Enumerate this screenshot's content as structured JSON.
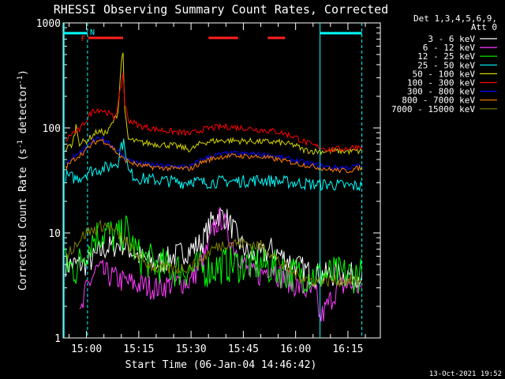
{
  "chart_data": {
    "type": "line",
    "title": "RHESSI Observing Summary Count Rates, Corrected",
    "xlabel": "Start Time (06-Jan-04 14:46:42)",
    "ylabel_main": "Corrected Count Rate (s",
    "ylabel_sup1": "-1",
    "ylabel_mid": " detector",
    "ylabel_sup2": "-1",
    "ylabel_end": ")",
    "yscale": "log",
    "ylim": [
      1,
      1000
    ],
    "xlim_minutes": [
      -6.7,
      84.3
    ],
    "x_ticks": [
      {
        "label": "15:00",
        "minutes": 0
      },
      {
        "label": "15:15",
        "minutes": 15
      },
      {
        "label": "15:30",
        "minutes": 30
      },
      {
        "label": "15:45",
        "minutes": 45
      },
      {
        "label": "16:00",
        "minutes": 60
      },
      {
        "label": "16:15",
        "minutes": 75
      }
    ],
    "y_ticks": [
      {
        "label": "1000",
        "value": 1000
      },
      {
        "label": "100",
        "value": 100
      },
      {
        "label": "10",
        "value": 10
      },
      {
        "label": "1",
        "value": 1
      }
    ],
    "legend_header": [
      "Det 1,3,4,5,6,9,",
      "Att 0"
    ],
    "legend_placement": "top-right outside",
    "flags": [
      {
        "label": "F",
        "color": "#ff2020"
      },
      {
        "label": "N",
        "color": "#00ffff"
      }
    ],
    "flare_bars_minutes": [
      [
        0.5,
        10.5
      ],
      [
        35,
        43.5
      ],
      [
        52,
        57
      ]
    ],
    "night_bars_minutes": [
      [
        -6.7,
        0.3
      ],
      [
        67,
        79
      ]
    ],
    "night_lines_minutes": [
      0.3,
      67,
      79
    ],
    "series": [
      {
        "name": "3 - 6 keV",
        "color": "#ffffff",
        "points": [
          [
            -6,
            5
          ],
          [
            -2,
            5
          ],
          [
            0,
            5
          ],
          [
            5,
            7
          ],
          [
            10,
            8
          ],
          [
            15,
            6
          ],
          [
            20,
            5
          ],
          [
            25,
            6
          ],
          [
            30,
            7
          ],
          [
            33,
            8
          ],
          [
            36,
            13
          ],
          [
            38,
            15
          ],
          [
            40,
            14
          ],
          [
            42,
            11
          ],
          [
            44,
            8
          ],
          [
            47,
            6
          ],
          [
            50,
            6
          ],
          [
            53,
            7
          ],
          [
            56,
            6
          ],
          [
            60,
            5
          ],
          [
            65,
            4
          ],
          [
            70,
            4
          ],
          [
            75,
            4
          ],
          [
            79,
            4
          ]
        ]
      },
      {
        "name": "6 - 12 keV",
        "color": "#ff3cff",
        "points": [
          [
            -2,
            1.5
          ],
          [
            -1,
            2
          ],
          [
            0,
            3
          ],
          [
            3,
            4.5
          ],
          [
            6,
            4
          ],
          [
            10,
            3.5
          ],
          [
            15,
            3.2
          ],
          [
            20,
            3
          ],
          [
            25,
            3.3
          ],
          [
            30,
            3.5
          ],
          [
            34,
            6
          ],
          [
            37,
            12
          ],
          [
            39,
            14
          ],
          [
            41,
            9
          ],
          [
            44,
            6
          ],
          [
            47,
            4
          ],
          [
            50,
            4
          ],
          [
            53,
            5
          ],
          [
            55,
            4
          ],
          [
            60,
            3.2
          ],
          [
            66,
            2.5
          ],
          [
            67,
            1.5
          ],
          [
            69,
            2
          ],
          [
            72,
            3
          ],
          [
            75,
            3.2
          ],
          [
            79,
            3
          ]
        ]
      },
      {
        "name": "12 - 25 keV",
        "color": "#00ff00",
        "points": [
          [
            -6,
            5
          ],
          [
            -3,
            4.5
          ],
          [
            0,
            7
          ],
          [
            2,
            9
          ],
          [
            4,
            10
          ],
          [
            6,
            10
          ],
          [
            8,
            9
          ],
          [
            10,
            9
          ],
          [
            11,
            12
          ],
          [
            12,
            9
          ],
          [
            15,
            6
          ],
          [
            20,
            5
          ],
          [
            25,
            4.5
          ],
          [
            30,
            4.5
          ],
          [
            35,
            4.5
          ],
          [
            40,
            5
          ],
          [
            45,
            5
          ],
          [
            50,
            5
          ],
          [
            55,
            4.5
          ],
          [
            60,
            4
          ],
          [
            65,
            4
          ],
          [
            70,
            4
          ],
          [
            75,
            4
          ],
          [
            79,
            4
          ]
        ]
      },
      {
        "name": "25 - 50 keV",
        "color": "#00ffff",
        "points": [
          [
            -6,
            35
          ],
          [
            -3,
            33
          ],
          [
            -1,
            35
          ],
          [
            0,
            38
          ],
          [
            3,
            40
          ],
          [
            6,
            42
          ],
          [
            9,
            48
          ],
          [
            10,
            70
          ],
          [
            11,
            70
          ],
          [
            12,
            38
          ],
          [
            15,
            33
          ],
          [
            20,
            32
          ],
          [
            25,
            31
          ],
          [
            28,
            30
          ],
          [
            30,
            32
          ],
          [
            33,
            30
          ],
          [
            40,
            31
          ],
          [
            45,
            31
          ],
          [
            50,
            32
          ],
          [
            55,
            31
          ],
          [
            60,
            30
          ],
          [
            65,
            29
          ],
          [
            70,
            29
          ],
          [
            75,
            28
          ],
          [
            79,
            28
          ]
        ]
      },
      {
        "name": "50 - 100 keV",
        "color": "#d4d400",
        "points": [
          [
            -6,
            63
          ],
          [
            -4,
            70
          ],
          [
            -3,
            105
          ],
          [
            -2,
            72
          ],
          [
            0,
            75
          ],
          [
            3,
            92
          ],
          [
            6,
            90
          ],
          [
            9,
            140
          ],
          [
            10,
            430
          ],
          [
            10.5,
            520
          ],
          [
            11,
            140
          ],
          [
            12,
            78
          ],
          [
            15,
            73
          ],
          [
            20,
            70
          ],
          [
            25,
            68
          ],
          [
            30,
            62
          ],
          [
            33,
            72
          ],
          [
            36,
            75
          ],
          [
            40,
            76
          ],
          [
            45,
            75
          ],
          [
            50,
            74
          ],
          [
            55,
            73
          ],
          [
            60,
            68
          ],
          [
            62,
            62
          ],
          [
            65,
            60
          ],
          [
            70,
            60
          ],
          [
            75,
            60
          ],
          [
            79,
            60
          ]
        ]
      },
      {
        "name": "100 - 300 keV",
        "color": "#ff0000",
        "points": [
          [
            -6,
            75
          ],
          [
            -4,
            90
          ],
          [
            -2,
            95
          ],
          [
            0,
            120
          ],
          [
            2,
            148
          ],
          [
            4,
            150
          ],
          [
            6,
            140
          ],
          [
            8,
            125
          ],
          [
            9,
            160
          ],
          [
            10,
            260
          ],
          [
            10.5,
            330
          ],
          [
            11,
            170
          ],
          [
            12,
            120
          ],
          [
            15,
            105
          ],
          [
            20,
            97
          ],
          [
            25,
            92
          ],
          [
            30,
            88
          ],
          [
            33,
            96
          ],
          [
            36,
            100
          ],
          [
            40,
            103
          ],
          [
            45,
            100
          ],
          [
            50,
            96
          ],
          [
            55,
            92
          ],
          [
            60,
            82
          ],
          [
            62,
            75
          ],
          [
            65,
            68
          ],
          [
            70,
            62
          ],
          [
            75,
            64
          ],
          [
            79,
            68
          ]
        ]
      },
      {
        "name": "300 - 800 keV",
        "color": "#0000ff",
        "points": [
          [
            -6,
            45
          ],
          [
            -4,
            52
          ],
          [
            -2,
            58
          ],
          [
            0,
            65
          ],
          [
            2,
            75
          ],
          [
            4,
            80
          ],
          [
            6,
            75
          ],
          [
            8,
            65
          ],
          [
            10,
            55
          ],
          [
            12,
            50
          ],
          [
            15,
            46
          ],
          [
            20,
            44
          ],
          [
            25,
            43
          ],
          [
            30,
            43
          ],
          [
            33,
            50
          ],
          [
            36,
            54
          ],
          [
            40,
            57
          ],
          [
            45,
            57
          ],
          [
            50,
            56
          ],
          [
            55,
            53
          ],
          [
            60,
            49
          ],
          [
            65,
            45
          ],
          [
            70,
            42
          ],
          [
            75,
            42
          ],
          [
            79,
            44
          ]
        ]
      },
      {
        "name": "800 - 7000 keV",
        "color": "#ff8000",
        "points": [
          [
            -6,
            42
          ],
          [
            -4,
            49
          ],
          [
            -2,
            55
          ],
          [
            0,
            62
          ],
          [
            2,
            72
          ],
          [
            4,
            77
          ],
          [
            6,
            72
          ],
          [
            8,
            62
          ],
          [
            10,
            52
          ],
          [
            12,
            48
          ],
          [
            15,
            44
          ],
          [
            20,
            42
          ],
          [
            25,
            41
          ],
          [
            30,
            41
          ],
          [
            33,
            47
          ],
          [
            36,
            51
          ],
          [
            40,
            54
          ],
          [
            45,
            54
          ],
          [
            50,
            53
          ],
          [
            55,
            50
          ],
          [
            60,
            46
          ],
          [
            65,
            43
          ],
          [
            70,
            40
          ],
          [
            75,
            39
          ],
          [
            79,
            42
          ]
        ]
      },
      {
        "name": "7000 - 15000 keV",
        "color": "#808000",
        "points": [
          [
            -6,
            6
          ],
          [
            -3,
            8
          ],
          [
            0,
            10
          ],
          [
            3,
            11
          ],
          [
            5,
            12
          ],
          [
            7,
            11
          ],
          [
            10,
            9
          ],
          [
            13,
            7
          ],
          [
            16,
            5.5
          ],
          [
            20,
            4.6
          ],
          [
            25,
            4.5
          ],
          [
            30,
            4.8
          ],
          [
            33,
            5.5
          ],
          [
            36,
            7
          ],
          [
            40,
            8
          ],
          [
            45,
            8
          ],
          [
            50,
            7.5
          ],
          [
            53,
            6.5
          ],
          [
            56,
            5
          ],
          [
            60,
            4
          ],
          [
            65,
            3.5
          ],
          [
            70,
            3.5
          ],
          [
            75,
            3.5
          ],
          [
            79,
            3.5
          ]
        ]
      }
    ],
    "grid": false
  },
  "footer": {
    "date": "13-Oct-2021 19:52"
  }
}
